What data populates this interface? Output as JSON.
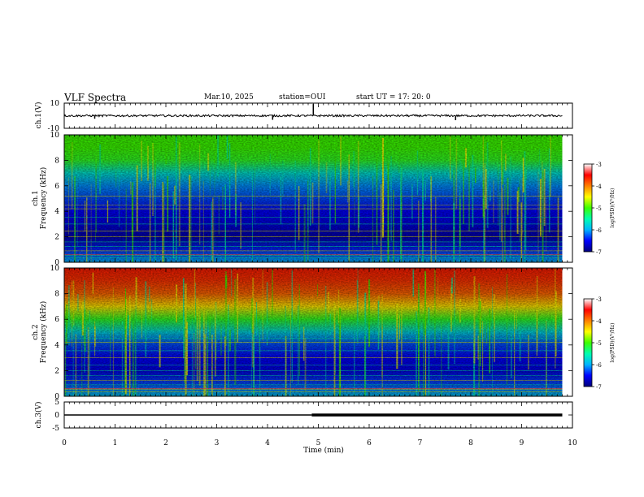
{
  "header": {
    "title": "VLF Spectra",
    "date": "Mar.10, 2025",
    "station": "station=OUI",
    "start": "start UT = 17: 20: 0"
  },
  "chart_data": [
    {
      "type": "line",
      "panel": "ch1-waveform",
      "ylabel": "ch.1(V)",
      "ylim": [
        -10,
        10
      ],
      "yticks": [
        "10",
        "-10"
      ],
      "baseline": 0,
      "x": [
        0,
        0.6,
        1.5,
        2.1,
        2.6,
        3.4,
        4.1,
        4.9,
        5.6,
        6.3,
        7.0,
        7.7,
        8.4,
        9.1,
        9.8
      ],
      "y": [
        0.3,
        -1.5,
        0.2,
        0.8,
        -0.6,
        0.4,
        -2.0,
        5.8,
        -0.4,
        0.6,
        0.2,
        -2.2,
        0.9,
        -0.3,
        0.1
      ]
    },
    {
      "type": "heatmap",
      "panel": "ch1-spectrogram",
      "ylabel": "ch.1\nFrequency (kHz)",
      "ylim": [
        0,
        10
      ],
      "yticks": [
        "0",
        "2",
        "4",
        "6",
        "8",
        "10"
      ],
      "colorbar": {
        "label": "log(PSD)(V²/Hz)",
        "range": [
          -7,
          -3
        ],
        "ticks": [
          "-3",
          "-4",
          "-5",
          "-6",
          "-7"
        ]
      },
      "profile_kHz": [
        0,
        1,
        2,
        3,
        4,
        5,
        6,
        7,
        8,
        9,
        10
      ],
      "profile_log_psd": [
        -6.0,
        -6.4,
        -6.8,
        -6.6,
        -6.5,
        -6.3,
        -6.1,
        -5.7,
        -5.1,
        -5.0,
        -5.0
      ]
    },
    {
      "type": "heatmap",
      "panel": "ch2-spectrogram",
      "ylabel": "ch.2\nFrequency (kHz)",
      "ylim": [
        0,
        10
      ],
      "yticks": [
        "0",
        "2",
        "4",
        "6",
        "8",
        "10"
      ],
      "colorbar": {
        "label": "log(PSD)(V²/Hz)",
        "range": [
          -7,
          -3
        ],
        "ticks": [
          "-3",
          "-4",
          "-5",
          "-6",
          "-7"
        ]
      },
      "profile_kHz": [
        0,
        1,
        2,
        3,
        4,
        5,
        6,
        7,
        8,
        9,
        10
      ],
      "profile_log_psd": [
        -5.9,
        -6.3,
        -6.6,
        -6.5,
        -6.3,
        -5.8,
        -5.1,
        -4.4,
        -3.9,
        -3.7,
        -3.6
      ]
    },
    {
      "type": "line",
      "panel": "ch3-waveform",
      "ylabel": "ch.3(V)",
      "ylim": [
        -5,
        5
      ],
      "yticks": [
        "5",
        "0",
        "-5"
      ],
      "x": [
        0,
        4.87,
        4.87,
        9.8
      ],
      "y": [
        0,
        0,
        0,
        0
      ]
    }
  ],
  "xaxis": {
    "label": "Time (min)",
    "xlim": [
      0,
      10
    ],
    "ticks": [
      "0",
      "1",
      "2",
      "3",
      "4",
      "5",
      "6",
      "7",
      "8",
      "9",
      "10"
    ],
    "data_end": 9.8
  },
  "colors": {
    "colormap": [
      "#00007a",
      "#0000ff",
      "#00b4ff",
      "#00ffb0",
      "#3cff00",
      "#ffff00",
      "#ff8000",
      "#ff0000",
      "#ffffff"
    ],
    "line": "#000000"
  }
}
